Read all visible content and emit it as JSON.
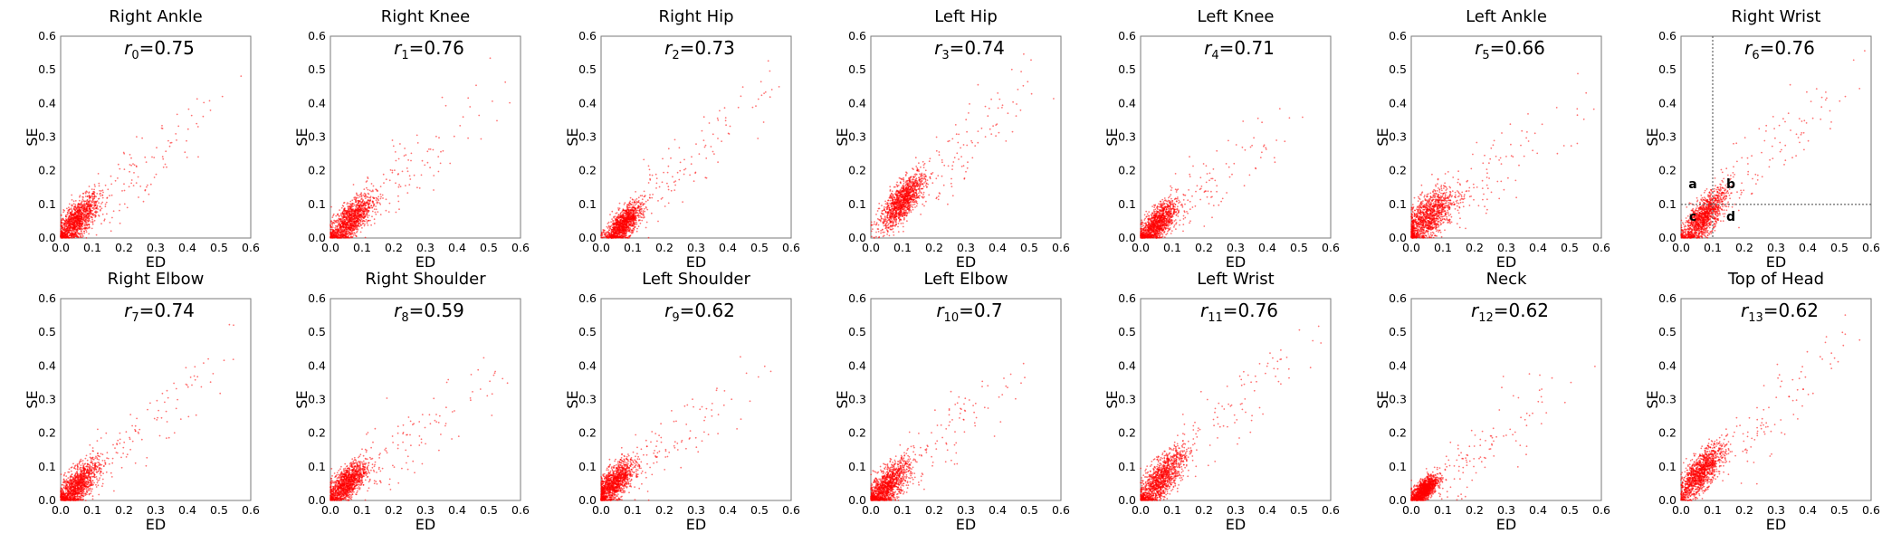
{
  "chart_data": {
    "type": "scatter",
    "marker_color": "#ff0000",
    "xlabel": "ED",
    "ylabel": "SE",
    "xlim": [
      0,
      0.6
    ],
    "ylim": [
      0,
      0.6
    ],
    "ticks": [
      "0.0",
      "0.1",
      "0.2",
      "0.3",
      "0.4",
      "0.5",
      "0.6"
    ],
    "tick_values": [
      0,
      0.1,
      0.2,
      0.3,
      0.4,
      0.5,
      0.6
    ],
    "panels": [
      {
        "title": "Right Ankle",
        "r_symbol": "r",
        "r_index": "0",
        "r_value": "=0.75",
        "center": [
          0.05,
          0.05
        ],
        "spread": 0.05,
        "slope": 0.8
      },
      {
        "title": "Right Knee",
        "r_symbol": "r",
        "r_index": "1",
        "r_value": "=0.76",
        "center": [
          0.06,
          0.05
        ],
        "spread": 0.05,
        "slope": 0.8
      },
      {
        "title": "Right Hip",
        "r_symbol": "r",
        "r_index": "2",
        "r_value": "=0.73",
        "center": [
          0.07,
          0.04
        ],
        "spread": 0.04,
        "slope": 0.8
      },
      {
        "title": "Left Hip",
        "r_symbol": "r",
        "r_index": "3",
        "r_value": "=0.74",
        "center": [
          0.1,
          0.11
        ],
        "spread": 0.05,
        "slope": 0.9
      },
      {
        "title": "Left Knee",
        "r_symbol": "r",
        "r_index": "4",
        "r_value": "=0.71",
        "center": [
          0.05,
          0.04
        ],
        "spread": 0.045,
        "slope": 0.75
      },
      {
        "title": "Left Ankle",
        "r_symbol": "r",
        "r_index": "5",
        "r_value": "=0.66",
        "center": [
          0.05,
          0.06
        ],
        "spread": 0.06,
        "slope": 0.7
      },
      {
        "title": "Right Wrist",
        "r_symbol": "r",
        "r_index": "6",
        "r_value": "=0.76",
        "center": [
          0.07,
          0.06
        ],
        "spread": 0.05,
        "slope": 0.9,
        "threshold": [
          0.1,
          0.1
        ],
        "zones": [
          "a",
          "b",
          "c",
          "d"
        ]
      },
      {
        "title": "Right Elbow",
        "r_symbol": "r",
        "r_index": "7",
        "r_value": "=0.74",
        "center": [
          0.05,
          0.04
        ],
        "spread": 0.05,
        "slope": 0.8
      },
      {
        "title": "Right Shoulder",
        "r_symbol": "r",
        "r_index": "8",
        "r_value": "=0.59",
        "center": [
          0.05,
          0.05
        ],
        "spread": 0.045,
        "slope": 0.7
      },
      {
        "title": "Left Shoulder",
        "r_symbol": "r",
        "r_index": "9",
        "r_value": "=0.62",
        "center": [
          0.04,
          0.05
        ],
        "spread": 0.045,
        "slope": 0.75
      },
      {
        "title": "Left Elbow",
        "r_symbol": "r",
        "r_index": "10",
        "r_value": "=0.7",
        "center": [
          0.05,
          0.04
        ],
        "spread": 0.05,
        "slope": 0.8
      },
      {
        "title": "Left Wrist",
        "r_symbol": "r",
        "r_index": "11",
        "r_value": "=0.76",
        "center": [
          0.06,
          0.06
        ],
        "spread": 0.055,
        "slope": 0.9
      },
      {
        "title": "Neck",
        "r_symbol": "r",
        "r_index": "12",
        "r_value": "=0.62",
        "center": [
          0.04,
          0.03
        ],
        "spread": 0.03,
        "slope": 0.7
      },
      {
        "title": "Top of Head",
        "r_symbol": "r",
        "r_index": "13",
        "r_value": "=0.62",
        "center": [
          0.06,
          0.08
        ],
        "spread": 0.05,
        "slope": 0.9
      }
    ]
  }
}
